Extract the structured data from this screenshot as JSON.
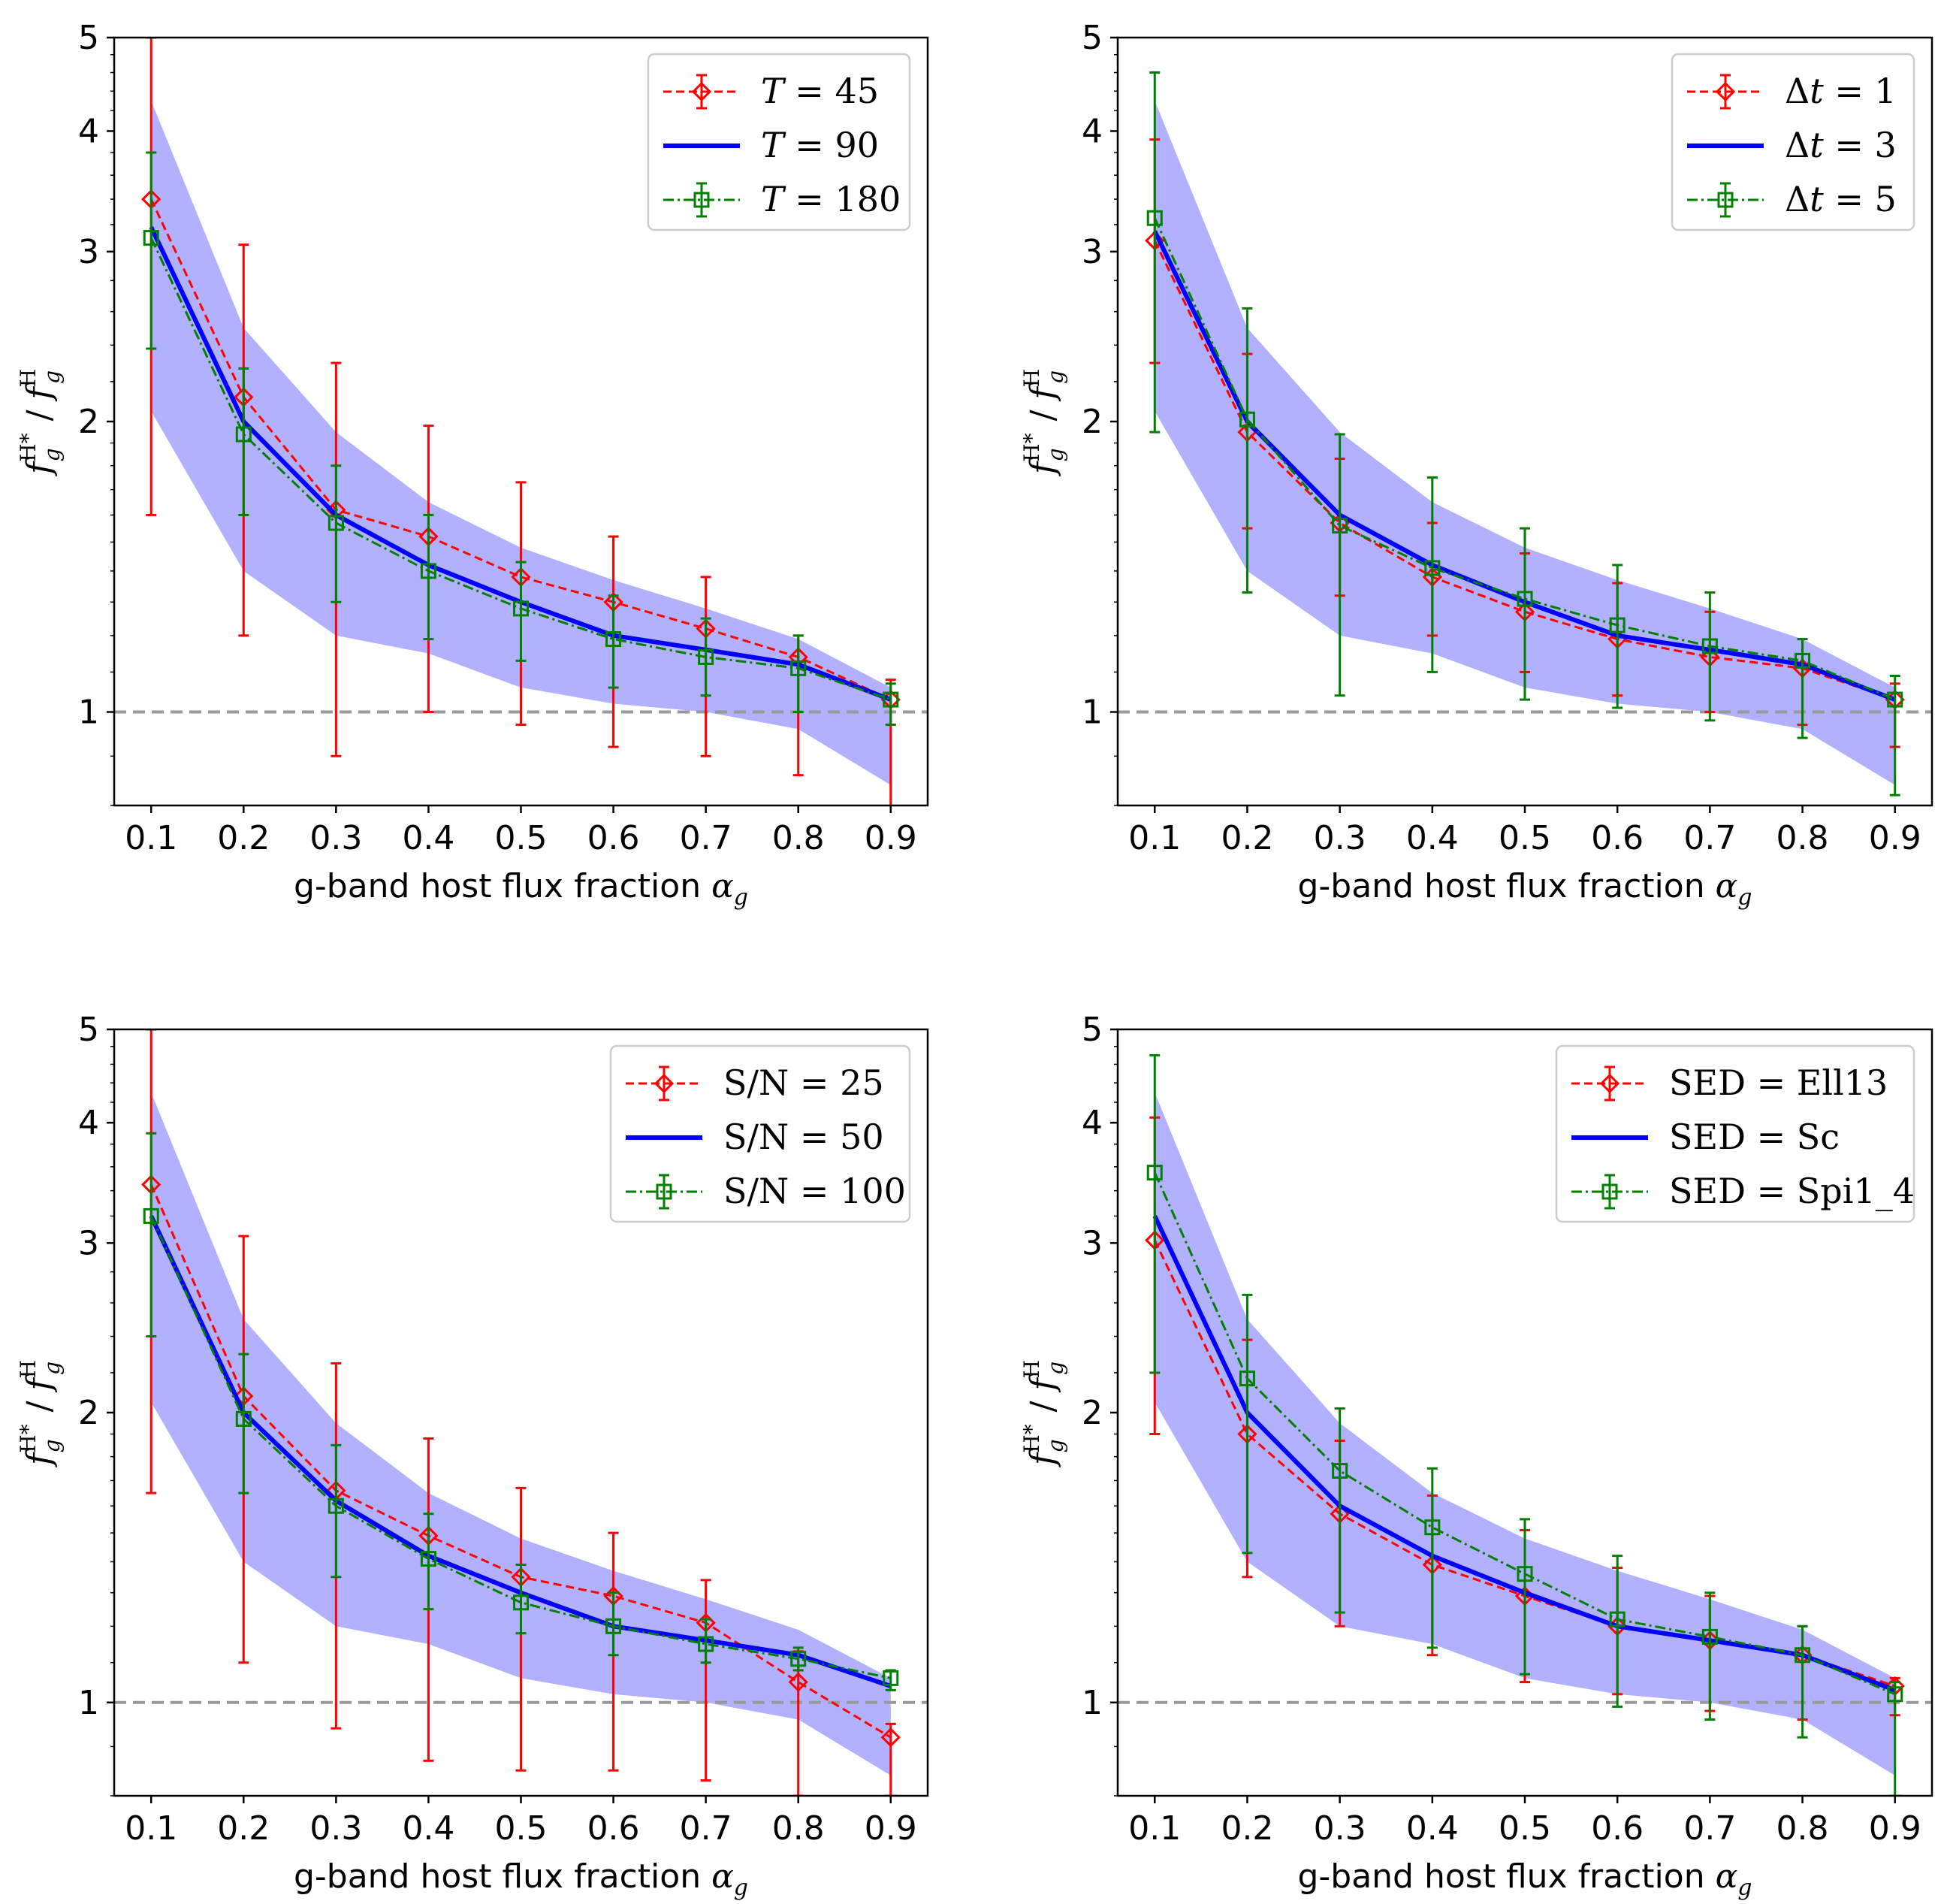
{
  "figure": {
    "xlabel_text": "g-band host flux fraction ",
    "xlabel_symbol": "α",
    "xlabel_sub": "g",
    "ylabel": {
      "f": "f",
      "sub": "g",
      "sup1": "H*",
      "sep": " / ",
      "sup2": "H"
    }
  },
  "colors": {
    "red": "#ff0000",
    "blue": "#0000ff",
    "green": "#008000",
    "band": "#aaaaff",
    "reference": "#999999"
  },
  "chart_data": [
    {
      "type": "line",
      "panel": "top-left",
      "x": [
        0.1,
        0.2,
        0.3,
        0.4,
        0.5,
        0.6,
        0.7,
        0.8,
        0.9
      ],
      "yscale": "log",
      "ylim": [
        0.8,
        5
      ],
      "xlim": [
        0.06,
        0.94
      ],
      "xticks": [
        "0.1",
        "0.2",
        "0.3",
        "0.4",
        "0.5",
        "0.6",
        "0.7",
        "0.8",
        "0.9"
      ],
      "yticks": [
        "1",
        "2",
        "3",
        "4",
        "5"
      ],
      "reference_line": 1,
      "band": {
        "lower": [
          2.05,
          1.4,
          1.2,
          1.15,
          1.06,
          1.02,
          1.0,
          0.96,
          0.84
        ],
        "upper": [
          4.3,
          2.5,
          1.95,
          1.65,
          1.48,
          1.37,
          1.28,
          1.19,
          1.06
        ]
      },
      "legend_location": "top-right",
      "series": [
        {
          "name_var": "T",
          "name_op": " = ",
          "name_val": "45",
          "style": "red-dash-diamond",
          "values": [
            3.4,
            2.12,
            1.62,
            1.52,
            1.38,
            1.3,
            1.22,
            1.14,
            1.03
          ],
          "err_low": [
            1.6,
            1.2,
            0.9,
            1.0,
            0.97,
            0.92,
            0.9,
            0.86,
            0.78
          ],
          "err_high": [
            5.0,
            3.05,
            2.3,
            1.98,
            1.73,
            1.52,
            1.38,
            1.2,
            1.08
          ]
        },
        {
          "name_var": "T",
          "name_op": " = ",
          "name_val": "90",
          "style": "blue-solid",
          "values": [
            3.18,
            2.0,
            1.6,
            1.42,
            1.3,
            1.2,
            1.16,
            1.12,
            1.03
          ],
          "err_low": [],
          "err_high": []
        },
        {
          "name_var": "T",
          "name_op": " = ",
          "name_val": "180",
          "style": "green-dashdot-square",
          "values": [
            3.1,
            1.94,
            1.57,
            1.4,
            1.28,
            1.19,
            1.14,
            1.11,
            1.03
          ],
          "err_low": [
            2.38,
            1.6,
            1.3,
            1.19,
            1.13,
            1.06,
            1.04,
            1.0,
            0.97
          ],
          "err_high": [
            3.8,
            2.27,
            1.8,
            1.6,
            1.43,
            1.32,
            1.25,
            1.2,
            1.07
          ]
        }
      ]
    },
    {
      "type": "line",
      "panel": "top-right",
      "x": [
        0.1,
        0.2,
        0.3,
        0.4,
        0.5,
        0.6,
        0.7,
        0.8,
        0.9
      ],
      "yscale": "log",
      "ylim": [
        0.8,
        5
      ],
      "xlim": [
        0.06,
        0.94
      ],
      "xticks": [
        "0.1",
        "0.2",
        "0.3",
        "0.4",
        "0.5",
        "0.6",
        "0.7",
        "0.8",
        "0.9"
      ],
      "yticks": [
        "1",
        "2",
        "3",
        "4",
        "5"
      ],
      "reference_line": 1,
      "band": {
        "lower": [
          2.05,
          1.4,
          1.2,
          1.15,
          1.06,
          1.02,
          1.0,
          0.96,
          0.84
        ],
        "upper": [
          4.3,
          2.5,
          1.95,
          1.65,
          1.48,
          1.37,
          1.28,
          1.19,
          1.06
        ]
      },
      "legend_location": "top-right",
      "series": [
        {
          "name_var": "Δt",
          "name_op": " = ",
          "name_val": "1",
          "style": "red-dash-diamond",
          "values": [
            3.08,
            1.95,
            1.57,
            1.38,
            1.27,
            1.19,
            1.14,
            1.11,
            1.03
          ],
          "err_low": [
            2.3,
            1.55,
            1.32,
            1.2,
            1.1,
            1.04,
            1.0,
            0.97,
            0.92
          ],
          "err_high": [
            3.92,
            2.35,
            1.83,
            1.57,
            1.46,
            1.36,
            1.27,
            1.19,
            1.07
          ]
        },
        {
          "name_var": "Δt",
          "name_op": " = ",
          "name_val": "3",
          "style": "blue-solid",
          "values": [
            3.15,
            2.0,
            1.6,
            1.42,
            1.3,
            1.2,
            1.16,
            1.12,
            1.03
          ],
          "err_low": [],
          "err_high": []
        },
        {
          "name_var": "Δt",
          "name_op": " = ",
          "name_val": "5",
          "style": "green-dashdot-square",
          "values": [
            3.25,
            2.01,
            1.56,
            1.41,
            1.31,
            1.23,
            1.17,
            1.13,
            1.03
          ],
          "err_low": [
            1.95,
            1.33,
            1.04,
            1.1,
            1.03,
            1.01,
            0.98,
            0.94,
            0.82
          ],
          "err_high": [
            4.6,
            2.62,
            1.94,
            1.75,
            1.55,
            1.42,
            1.33,
            1.19,
            1.09
          ]
        }
      ]
    },
    {
      "type": "line",
      "panel": "bottom-left",
      "x": [
        0.1,
        0.2,
        0.3,
        0.4,
        0.5,
        0.6,
        0.7,
        0.8,
        0.9
      ],
      "yscale": "log",
      "ylim": [
        0.8,
        5
      ],
      "xlim": [
        0.06,
        0.94
      ],
      "xticks": [
        "0.1",
        "0.2",
        "0.3",
        "0.4",
        "0.5",
        "0.6",
        "0.7",
        "0.8",
        "0.9"
      ],
      "yticks": [
        "1",
        "2",
        "3",
        "4",
        "5"
      ],
      "reference_line": 1,
      "band": {
        "lower": [
          2.05,
          1.4,
          1.2,
          1.15,
          1.06,
          1.02,
          1.0,
          0.96,
          0.84
        ],
        "upper": [
          4.3,
          2.5,
          1.95,
          1.65,
          1.48,
          1.37,
          1.28,
          1.19,
          1.06
        ]
      },
      "legend_location": "top-right",
      "series": [
        {
          "name_var": "S/N",
          "name_op": " = ",
          "name_val": "25",
          "style": "red-dash-diamond",
          "values": [
            3.45,
            2.08,
            1.66,
            1.49,
            1.35,
            1.29,
            1.21,
            1.05,
            0.92
          ],
          "err_low": [
            1.65,
            1.1,
            0.94,
            0.87,
            0.85,
            0.85,
            0.83,
            0.8,
            0.8
          ],
          "err_high": [
            5.0,
            3.05,
            2.25,
            1.88,
            1.67,
            1.5,
            1.34,
            1.13,
            0.95
          ]
        },
        {
          "name_var": "S/N",
          "name_op": " = ",
          "name_val": "50",
          "style": "blue-solid",
          "values": [
            3.2,
            2.0,
            1.62,
            1.42,
            1.3,
            1.2,
            1.16,
            1.12,
            1.04
          ],
          "err_low": [],
          "err_high": []
        },
        {
          "name_var": "S/N",
          "name_op": " = ",
          "name_val": "100",
          "style": "green-dashdot-square",
          "values": [
            3.2,
            1.97,
            1.6,
            1.41,
            1.27,
            1.2,
            1.15,
            1.11,
            1.06
          ],
          "err_low": [
            2.4,
            1.65,
            1.35,
            1.25,
            1.18,
            1.12,
            1.1,
            1.08,
            1.03
          ],
          "err_high": [
            3.9,
            2.3,
            1.85,
            1.57,
            1.39,
            1.3,
            1.22,
            1.14,
            1.08
          ]
        }
      ]
    },
    {
      "type": "line",
      "panel": "bottom-right",
      "x": [
        0.1,
        0.2,
        0.3,
        0.4,
        0.5,
        0.6,
        0.7,
        0.8,
        0.9
      ],
      "yscale": "log",
      "ylim": [
        0.8,
        5
      ],
      "xlim": [
        0.06,
        0.94
      ],
      "xticks": [
        "0.1",
        "0.2",
        "0.3",
        "0.4",
        "0.5",
        "0.6",
        "0.7",
        "0.8",
        "0.9"
      ],
      "yticks": [
        "1",
        "2",
        "3",
        "4",
        "5"
      ],
      "reference_line": 1,
      "band": {
        "lower": [
          2.05,
          1.4,
          1.2,
          1.15,
          1.06,
          1.02,
          1.0,
          0.96,
          0.84
        ],
        "upper": [
          4.3,
          2.5,
          1.95,
          1.65,
          1.48,
          1.37,
          1.28,
          1.19,
          1.06
        ]
      },
      "legend_location": "top-right",
      "series": [
        {
          "name_var": "SED",
          "name_op": " = ",
          "name_val": "Ell13",
          "style": "red-dash-diamond",
          "values": [
            3.02,
            1.9,
            1.57,
            1.39,
            1.29,
            1.2,
            1.16,
            1.12,
            1.04
          ],
          "err_low": [
            1.9,
            1.35,
            1.2,
            1.12,
            1.05,
            1.02,
            0.98,
            0.96,
            0.97
          ],
          "err_high": [
            4.05,
            2.38,
            1.87,
            1.64,
            1.51,
            1.38,
            1.29,
            1.2,
            1.06
          ]
        },
        {
          "name_var": "SED",
          "name_op": " = ",
          "name_val": "Sc",
          "style": "blue-solid",
          "values": [
            3.2,
            2.0,
            1.6,
            1.42,
            1.3,
            1.2,
            1.16,
            1.12,
            1.03
          ],
          "err_low": [],
          "err_high": []
        },
        {
          "name_var": "SED",
          "name_op": " = ",
          "name_val": "Spi1_4",
          "style": "green-dashdot-square",
          "values": [
            3.55,
            2.17,
            1.74,
            1.52,
            1.36,
            1.22,
            1.17,
            1.12,
            1.02
          ],
          "err_low": [
            2.2,
            1.43,
            1.24,
            1.14,
            1.07,
            0.99,
            0.96,
            0.92,
            0.8
          ],
          "err_high": [
            4.7,
            2.65,
            2.02,
            1.75,
            1.55,
            1.42,
            1.3,
            1.2,
            1.05
          ]
        }
      ]
    }
  ]
}
